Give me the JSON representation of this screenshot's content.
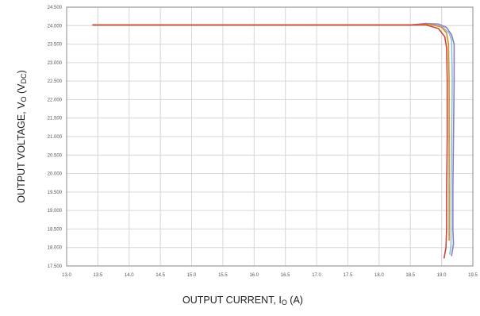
{
  "chart_data": {
    "type": "line",
    "title": "",
    "xlabel": "OUTPUT CURRENT, I",
    "xlabel_sub": "O",
    "xlabel_suffix": " (A)",
    "ylabel": "OUTPUT VOLTAGE, V",
    "ylabel_sub": "O",
    "ylabel_suffix": "  (V",
    "ylabel_unit_sub": "DC",
    "ylabel_close": ")",
    "xlim": [
      13.0,
      19.5
    ],
    "ylim": [
      17.5,
      24.5
    ],
    "x_ticks": [
      "13.0",
      "13.5",
      "14.0",
      "14.5",
      "15.0",
      "15.5",
      "16.0",
      "16.5",
      "17.0",
      "17.5",
      "18.0",
      "18.5",
      "19.0",
      "19.5"
    ],
    "y_ticks": [
      "17.500",
      "18.000",
      "18.500",
      "19.000",
      "19.500",
      "20.000",
      "20.500",
      "21.000",
      "21.500",
      "22.000",
      "22.500",
      "23.000",
      "23.500",
      "24.000",
      "24.500"
    ],
    "grid": true,
    "series": [
      {
        "color": "#8e7cc3",
        "points": [
          [
            13.42,
            24.02
          ],
          [
            18.5,
            24.02
          ],
          [
            18.75,
            24.06
          ],
          [
            18.95,
            24.04
          ],
          [
            19.08,
            23.95
          ],
          [
            19.16,
            23.75
          ],
          [
            19.2,
            23.5
          ],
          [
            19.2,
            22.5
          ],
          [
            19.19,
            21.0
          ],
          [
            19.18,
            19.5
          ],
          [
            19.18,
            18.5
          ],
          [
            19.19,
            18.1
          ],
          [
            19.16,
            17.78
          ]
        ]
      },
      {
        "color": "#87c5d8",
        "points": [
          [
            13.42,
            24.02
          ],
          [
            18.5,
            24.02
          ],
          [
            18.8,
            24.03
          ],
          [
            19.0,
            23.98
          ],
          [
            19.12,
            23.8
          ],
          [
            19.16,
            23.6
          ],
          [
            19.17,
            22.5
          ],
          [
            19.16,
            21.0
          ],
          [
            19.15,
            19.5
          ],
          [
            19.15,
            18.5
          ],
          [
            19.15,
            18.05
          ],
          [
            19.13,
            17.82
          ]
        ]
      },
      {
        "color": "#e08a1e",
        "points": [
          [
            13.42,
            24.02
          ],
          [
            18.5,
            24.02
          ],
          [
            18.8,
            24.04
          ],
          [
            19.0,
            23.96
          ],
          [
            19.08,
            23.8
          ],
          [
            19.11,
            23.5
          ],
          [
            19.12,
            22.5
          ],
          [
            19.12,
            21.0
          ],
          [
            19.12,
            19.5
          ],
          [
            19.12,
            18.5
          ],
          [
            19.12,
            18.2
          ]
        ]
      },
      {
        "color": "#c9473d",
        "points": [
          [
            13.42,
            24.02
          ],
          [
            18.5,
            24.02
          ],
          [
            18.75,
            24.02
          ],
          [
            18.95,
            23.92
          ],
          [
            19.05,
            23.7
          ],
          [
            19.08,
            23.4
          ],
          [
            19.09,
            22.5
          ],
          [
            19.09,
            21.0
          ],
          [
            19.08,
            19.5
          ],
          [
            19.08,
            18.5
          ],
          [
            19.07,
            18.0
          ],
          [
            19.04,
            17.72
          ]
        ]
      }
    ]
  }
}
